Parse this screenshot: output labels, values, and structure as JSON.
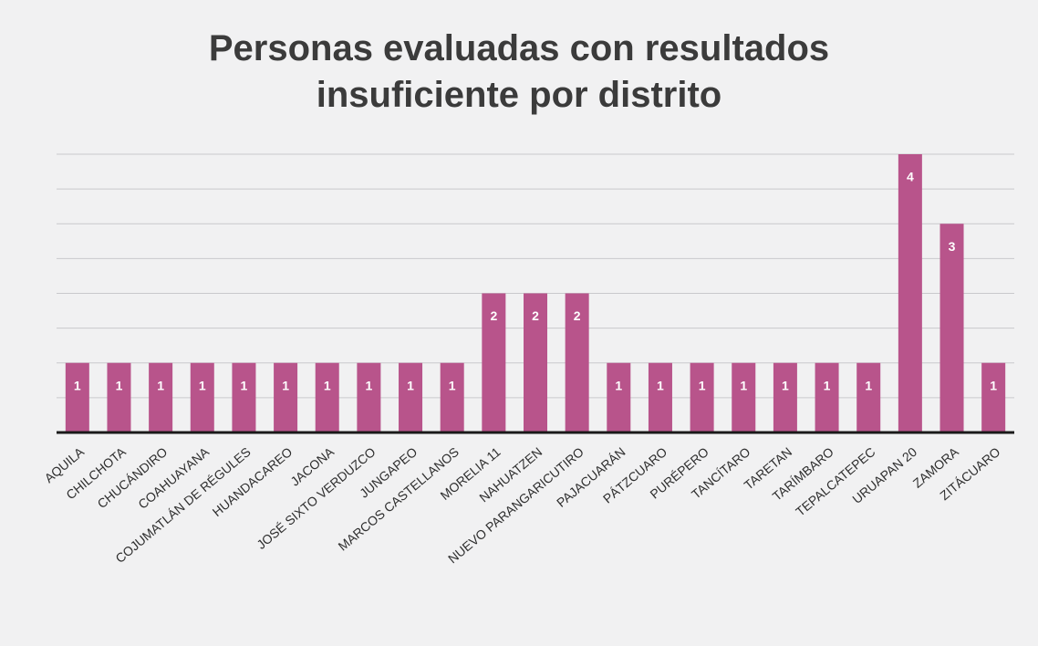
{
  "chart_data": {
    "type": "bar",
    "title": "Personas evaluadas con resultados insuficiente por distrito",
    "categories": [
      "AQUILA",
      "CHILCHOTA",
      "CHUCÁNDIRO",
      "COAHUAYANA",
      "COJUMATLÁN DE RÉGULES",
      "HUANDACAREO",
      "JACONA",
      "JOSÉ SIXTO VERDUZCO",
      "JUNGAPEO",
      "MARCOS CASTELLANOS",
      "MORELIA 11",
      "NAHUATZEN",
      "NUEVO PARANGARICUTIRO",
      "PAJACUARÁN",
      "PÁTZCUARO",
      "PURÉPERO",
      "TANCÍTARO",
      "TARETAN",
      "TARÍMBARO",
      "TEPALCATEPEC",
      "URUAPAN 20",
      "ZAMORA",
      "ZITÁCUARO"
    ],
    "values": [
      1,
      1,
      1,
      1,
      1,
      1,
      1,
      1,
      1,
      1,
      2,
      2,
      2,
      1,
      1,
      1,
      1,
      1,
      1,
      1,
      4,
      3,
      1
    ],
    "color": "#b8548b",
    "ylim": [
      0,
      4
    ],
    "yticks": [
      0,
      0.5,
      1,
      1.5,
      2,
      2.5,
      3,
      3.5,
      4
    ],
    "grid": true
  }
}
